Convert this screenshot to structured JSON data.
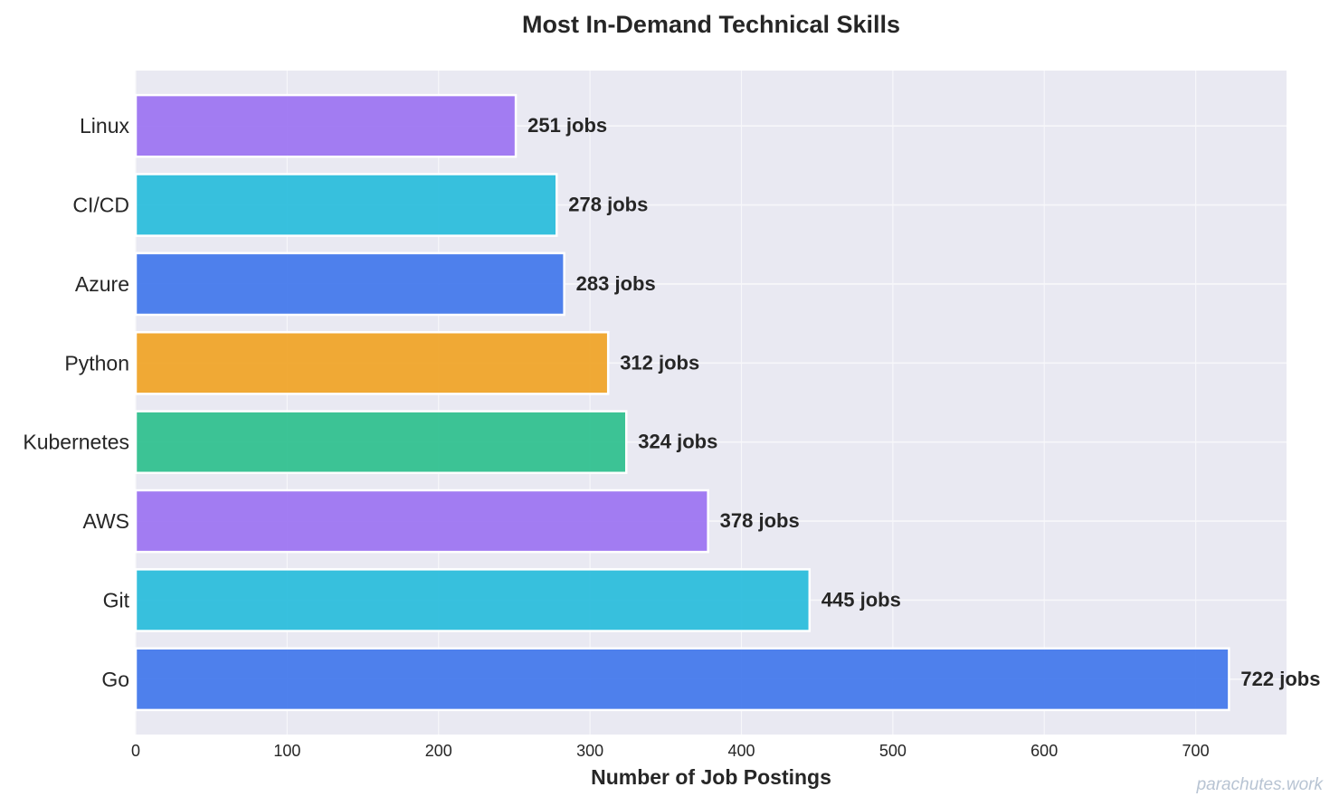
{
  "chart_data": {
    "type": "bar",
    "orientation": "horizontal",
    "title": "Most In-Demand Technical Skills",
    "xlabel": "Number of Job Postings",
    "ylabel": "",
    "categories": [
      "Linux",
      "CI/CD",
      "Azure",
      "Python",
      "Kubernetes",
      "AWS",
      "Git",
      "Go"
    ],
    "values": [
      251,
      278,
      283,
      312,
      324,
      378,
      445,
      722
    ],
    "data_labels": [
      "251 jobs",
      "278 jobs",
      "283 jobs",
      "312 jobs",
      "324 jobs",
      "378 jobs",
      "445 jobs",
      "722 jobs"
    ],
    "colors": [
      "#9b72f2",
      "#27bcdb",
      "#4076ec",
      "#f0a325",
      "#2cbf8d",
      "#9b72f2",
      "#27bcdb",
      "#4076ec"
    ],
    "xlim": [
      0,
      760
    ],
    "xticks": [
      0,
      100,
      200,
      300,
      400,
      500,
      600,
      700
    ],
    "xtick_labels": [
      "0",
      "100",
      "200",
      "300",
      "400",
      "500",
      "600",
      "700"
    ],
    "grid": true,
    "background": "#e9e9f2"
  },
  "watermark": "parachutes.work"
}
